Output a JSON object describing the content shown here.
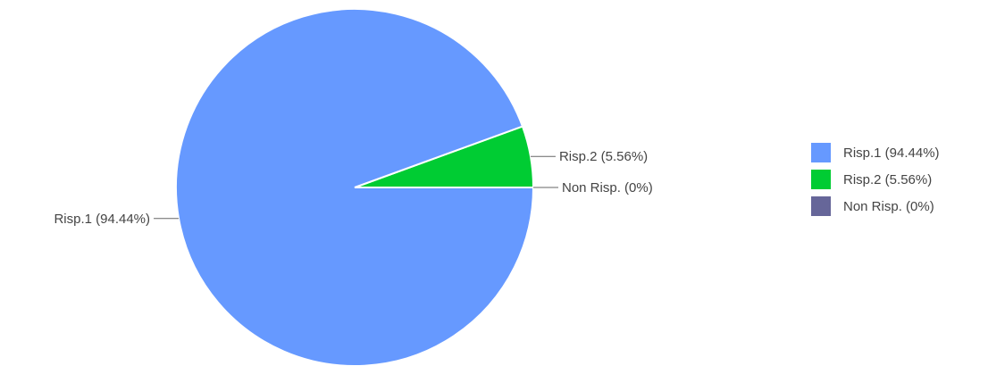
{
  "chart_data": {
    "type": "pie",
    "title": "",
    "slices": [
      {
        "label": "Risp.1",
        "value": 94.44,
        "display": "Risp.1 (94.44%)",
        "color": "#6699ff"
      },
      {
        "label": "Risp.2",
        "value": 5.56,
        "display": "Risp.2 (5.56%)",
        "color": "#00cc33"
      },
      {
        "label": "Non Risp.",
        "value": 0,
        "display": "Non Risp. (0%)",
        "color": "#666699"
      }
    ],
    "legend_position": "right"
  }
}
